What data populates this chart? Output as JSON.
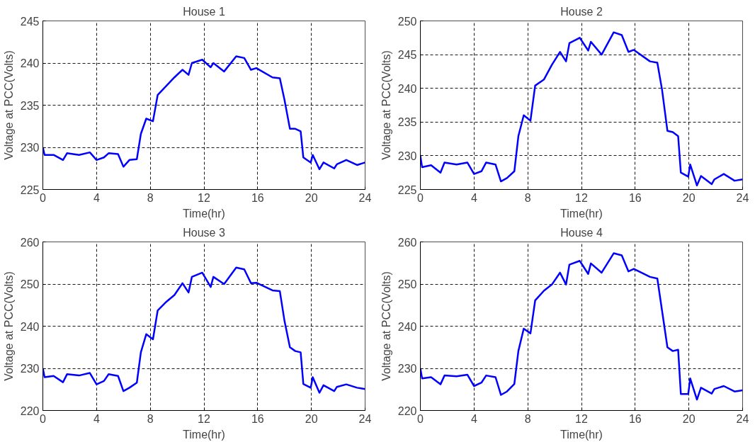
{
  "chart_data": [
    {
      "type": "line",
      "title": "House 1",
      "xlabel": "Time(hr)",
      "ylabel": "Voltage at PCC(Volts)",
      "xlim": [
        0,
        24
      ],
      "xticks": [
        0,
        4,
        8,
        12,
        16,
        20,
        24
      ],
      "ylim": [
        225,
        245
      ],
      "yticks": [
        225,
        230,
        235,
        240,
        245
      ],
      "grid": true,
      "line_style": "solid",
      "x": [
        0,
        0.13,
        0.8,
        1.5,
        1.8,
        2.7,
        3.5,
        4.0,
        4.55,
        4.9,
        5.6,
        6.0,
        6.45,
        7.0,
        7.3,
        7.7,
        8.2,
        8.55,
        9.2,
        9.8,
        10.4,
        10.85,
        11.1,
        11.87,
        12.5,
        12.7,
        13.5,
        14.4,
        15.0,
        15.5,
        15.9,
        17.1,
        17.65,
        18.0,
        18.4,
        18.8,
        19.2,
        19.4,
        19.95,
        20.1,
        20.6,
        20.9,
        21.7,
        21.9,
        22.6,
        23.4,
        24
      ],
      "series": [
        {
          "color": "#0000ff",
          "values": [
            230.0,
            229.1,
            229.1,
            228.5,
            229.3,
            229.1,
            229.4,
            228.5,
            228.8,
            229.3,
            229.2,
            227.7,
            228.5,
            228.6,
            231.6,
            233.4,
            233.1,
            236.2,
            237.3,
            238.3,
            239.2,
            238.6,
            240.0,
            240.4,
            239.5,
            240.0,
            239.0,
            240.8,
            240.6,
            239.2,
            239.4,
            238.3,
            238.2,
            235.6,
            232.2,
            232.2,
            231.9,
            228.8,
            228.2,
            229.1,
            227.4,
            228.2,
            227.5,
            228.0,
            228.5,
            227.9,
            228.2
          ]
        }
      ]
    },
    {
      "type": "line",
      "title": "House 2",
      "xlabel": "Time(hr)",
      "ylabel": "Voltage at PCC(Volts)",
      "xlim": [
        0,
        24
      ],
      "xticks": [
        0,
        4,
        8,
        12,
        16,
        20,
        24
      ],
      "ylim": [
        225,
        250
      ],
      "yticks": [
        225,
        230,
        235,
        240,
        245,
        250
      ],
      "grid": true,
      "line_style": "solid",
      "x": [
        0,
        0.13,
        0.8,
        1.5,
        1.8,
        2.7,
        3.5,
        4.0,
        4.55,
        4.9,
        5.6,
        6.0,
        6.45,
        7.0,
        7.3,
        7.7,
        8.2,
        8.55,
        9.2,
        9.8,
        10.4,
        10.85,
        11.1,
        11.87,
        12.5,
        12.7,
        13.5,
        14.4,
        15.0,
        15.5,
        15.9,
        17.1,
        17.65,
        18.0,
        18.4,
        18.8,
        19.2,
        19.4,
        19.95,
        20.1,
        20.6,
        20.9,
        21.7,
        21.9,
        22.6,
        23.4,
        24
      ],
      "series": [
        {
          "color": "#0000ff",
          "values": [
            230.0,
            228.3,
            228.6,
            227.5,
            229.0,
            228.7,
            229.0,
            227.3,
            227.7,
            229.0,
            228.7,
            226.2,
            226.7,
            227.7,
            232.9,
            236.0,
            235.2,
            240.4,
            241.3,
            243.5,
            245.4,
            244.0,
            246.7,
            247.5,
            245.6,
            246.9,
            245.0,
            248.3,
            247.9,
            245.4,
            245.7,
            244.0,
            243.8,
            239.8,
            233.7,
            233.5,
            232.9,
            227.5,
            226.9,
            228.7,
            225.6,
            227.0,
            225.8,
            226.5,
            227.3,
            226.3,
            226.5
          ]
        }
      ]
    },
    {
      "type": "line",
      "title": "House 3",
      "xlabel": "Time(hr)",
      "ylabel": "Voltage at PCC(Volts)",
      "xlim": [
        0,
        24
      ],
      "xticks": [
        0,
        4,
        8,
        12,
        16,
        20,
        24
      ],
      "ylim": [
        220,
        260
      ],
      "yticks": [
        220,
        230,
        240,
        250,
        260
      ],
      "grid": true,
      "line_style": "solid",
      "x": [
        0,
        0.13,
        0.8,
        1.5,
        1.8,
        2.7,
        3.5,
        4.0,
        4.55,
        4.9,
        5.6,
        6.0,
        6.45,
        7.0,
        7.3,
        7.7,
        8.2,
        8.55,
        9.2,
        9.8,
        10.4,
        10.85,
        11.1,
        11.87,
        12.5,
        12.7,
        13.5,
        14.4,
        15.0,
        15.5,
        15.9,
        17.1,
        17.65,
        18.0,
        18.4,
        18.8,
        19.2,
        19.4,
        19.95,
        20.1,
        20.6,
        20.9,
        21.7,
        21.9,
        22.6,
        23.4,
        24
      ],
      "series": [
        {
          "color": "#0000ff",
          "values": [
            230.0,
            227.9,
            228.2,
            226.7,
            228.6,
            228.3,
            228.9,
            226.2,
            227.0,
            228.6,
            228.2,
            224.6,
            225.4,
            226.6,
            233.8,
            238.1,
            236.9,
            243.7,
            245.8,
            247.4,
            250.2,
            248.0,
            251.7,
            252.7,
            249.3,
            251.7,
            250.0,
            253.9,
            253.5,
            250.2,
            250.3,
            248.5,
            248.3,
            241.2,
            235.0,
            234.1,
            233.8,
            226.3,
            225.4,
            227.9,
            224.2,
            226.0,
            224.6,
            225.6,
            226.2,
            225.4,
            225.1
          ]
        }
      ]
    },
    {
      "type": "line",
      "title": "House 4",
      "xlabel": "Time(hr)",
      "ylabel": "Voltage at PCC(Volts)",
      "xlim": [
        0,
        24
      ],
      "xticks": [
        0,
        4,
        8,
        12,
        16,
        20,
        24
      ],
      "ylim": [
        220,
        260
      ],
      "yticks": [
        220,
        230,
        240,
        250,
        260
      ],
      "grid": true,
      "line_style": "solid",
      "x": [
        0,
        0.13,
        0.8,
        1.5,
        1.8,
        2.7,
        3.5,
        4.0,
        4.55,
        4.9,
        5.6,
        6.0,
        6.45,
        7.0,
        7.3,
        7.7,
        8.2,
        8.55,
        9.2,
        9.8,
        10.4,
        10.85,
        11.1,
        11.87,
        12.5,
        12.7,
        13.5,
        14.4,
        15.0,
        15.5,
        15.9,
        17.1,
        17.65,
        18.0,
        18.4,
        18.8,
        19.2,
        19.4,
        19.95,
        20.1,
        20.6,
        20.9,
        21.7,
        21.9,
        22.6,
        23.4,
        24
      ],
      "series": [
        {
          "color": "#0000ff",
          "values": [
            230.0,
            227.6,
            227.9,
            226.2,
            228.3,
            228.1,
            228.5,
            225.8,
            226.6,
            228.3,
            227.9,
            223.7,
            224.5,
            226.3,
            234.1,
            239.4,
            238.3,
            246.1,
            248.4,
            249.9,
            252.7,
            249.9,
            254.6,
            255.5,
            252.4,
            254.9,
            252.7,
            257.3,
            256.8,
            253.0,
            253.6,
            251.7,
            251.3,
            243.7,
            235.0,
            234.1,
            234.4,
            223.9,
            223.9,
            227.6,
            222.6,
            225.4,
            224.0,
            225.1,
            225.8,
            224.5,
            224.8
          ]
        }
      ]
    }
  ]
}
